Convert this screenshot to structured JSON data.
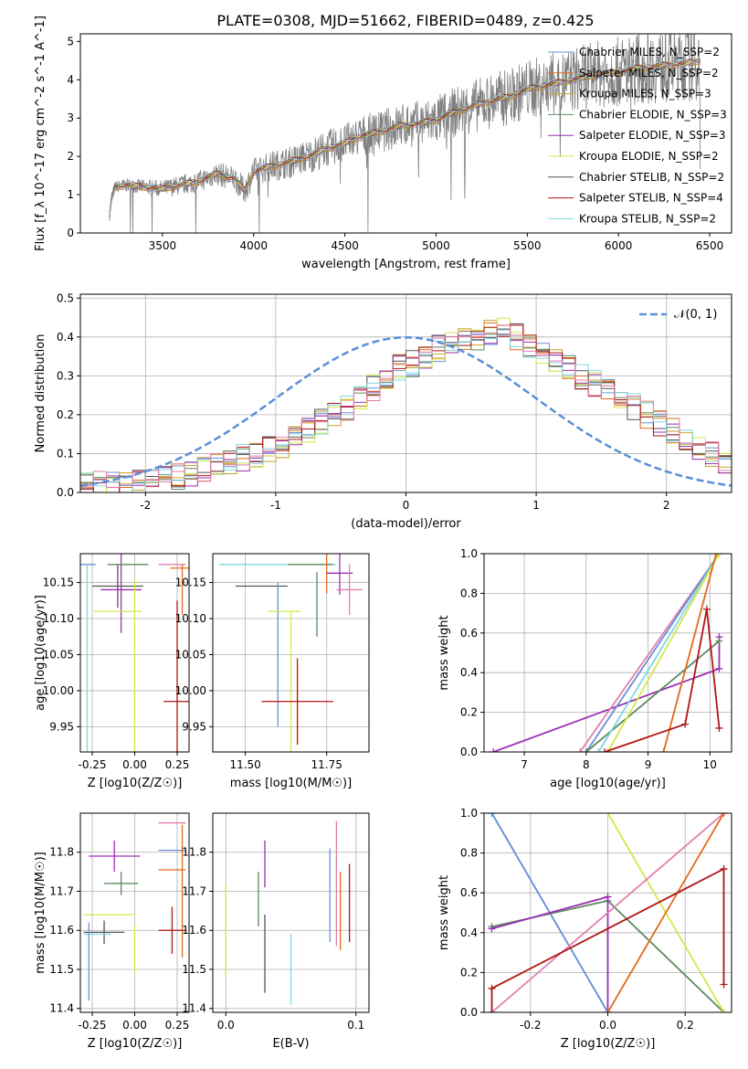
{
  "chart_data": [
    {
      "id": "spectrum",
      "type": "line",
      "title": "PLATE=0308, MJD=51662, FIBERID=0489, z=0.425",
      "xlabel": "wavelength [Angstrom, rest frame]",
      "ylabel": "Flux [f_λ 10^-17 erg cm^-2 s^-1 A^-1]",
      "xlim": [
        3050,
        6620
      ],
      "ylim": [
        0,
        5.2
      ],
      "xticks": [
        3500,
        4000,
        4500,
        5000,
        5500,
        6000,
        6500
      ],
      "yticks": [
        0,
        1,
        2,
        3,
        4,
        5
      ],
      "grid": false,
      "legend_position": "top-right",
      "legend": [
        {
          "label": "Chabrier MILES, N_SSP=2",
          "color": "#6a8fd8"
        },
        {
          "label": "Salpeter MILES, N_SSP=2",
          "color": "#e06b1a"
        },
        {
          "label": "Kroupa MILES, N_SSP=3",
          "color": "#c9a227"
        },
        {
          "label": "Chabrier ELODIE, N_SSP=3",
          "color": "#5e8a5e"
        },
        {
          "label": "Salpeter ELODIE, N_SSP=3",
          "color": "#9c2fb5"
        },
        {
          "label": "Kroupa ELODIE, N_SSP=2",
          "color": "#d4e84a"
        },
        {
          "label": "Chabrier STELIB, N_SSP=2",
          "color": "#555555"
        },
        {
          "label": "Salpeter STELIB, N_SSP=4",
          "color": "#b01515"
        },
        {
          "label": "Kroupa STELIB, N_SSP=2",
          "color": "#80d8e0"
        }
      ],
      "data_color": "#808080",
      "model_points": [
        [
          3200,
          0.02
        ],
        [
          3220,
          0.9
        ],
        [
          3240,
          1.2
        ],
        [
          3300,
          1.25
        ],
        [
          3400,
          1.2
        ],
        [
          3500,
          1.15
        ],
        [
          3600,
          1.25
        ],
        [
          3700,
          1.35
        ],
        [
          3800,
          1.55
        ],
        [
          3900,
          1.4
        ],
        [
          3950,
          1.1
        ],
        [
          4000,
          1.6
        ],
        [
          4100,
          1.75
        ],
        [
          4200,
          1.85
        ],
        [
          4300,
          2.0
        ],
        [
          4400,
          2.2
        ],
        [
          4500,
          2.35
        ],
        [
          4600,
          2.55
        ],
        [
          4700,
          2.65
        ],
        [
          4800,
          2.8
        ],
        [
          4900,
          2.85
        ],
        [
          5000,
          2.95
        ],
        [
          5100,
          3.15
        ],
        [
          5200,
          3.3
        ],
        [
          5300,
          3.45
        ],
        [
          5400,
          3.55
        ],
        [
          5500,
          3.75
        ],
        [
          5600,
          3.85
        ],
        [
          5700,
          3.95
        ],
        [
          5800,
          4.05
        ],
        [
          5900,
          4.15
        ],
        [
          6000,
          4.2
        ],
        [
          6100,
          4.3
        ],
        [
          6200,
          4.35
        ],
        [
          6300,
          4.4
        ],
        [
          6400,
          4.45
        ],
        [
          6450,
          4.5
        ]
      ]
    },
    {
      "id": "residuals",
      "type": "histogram",
      "xlabel": "(data-model)/error",
      "ylabel": "Normed distribution",
      "xlim": [
        -2.5,
        2.5
      ],
      "ylim": [
        0,
        0.51
      ],
      "xticks": [
        -2,
        -1,
        0,
        1,
        2
      ],
      "yticks": [
        0.0,
        0.1,
        0.2,
        0.3,
        0.4,
        0.5
      ],
      "grid": true,
      "legend_position": "top-right",
      "legend_label": "𝒩(0, 1)",
      "gaussian_color": "#5b8fd8",
      "bin_edges_start": -2.5,
      "bin_width": 0.1,
      "colors": [
        "#6a8fd8",
        "#e06b1a",
        "#c9a227",
        "#5e8a5e",
        "#9c2fb5",
        "#d4e84a",
        "#555555",
        "#b01515",
        "#80d8e0",
        "#e07fb0"
      ],
      "reference_values": [
        0.018,
        0.02,
        0.02,
        0.025,
        0.028,
        0.032,
        0.035,
        0.04,
        0.05,
        0.06,
        0.07,
        0.08,
        0.09,
        0.1,
        0.11,
        0.12,
        0.14,
        0.16,
        0.18,
        0.2,
        0.22,
        0.25,
        0.27,
        0.3,
        0.32,
        0.33,
        0.35,
        0.37,
        0.38,
        0.39,
        0.4,
        0.41,
        0.42,
        0.4,
        0.38,
        0.36,
        0.34,
        0.32,
        0.3,
        0.28,
        0.26,
        0.24,
        0.22,
        0.2,
        0.18,
        0.16,
        0.14,
        0.12,
        0.1,
        0.08
      ]
    },
    {
      "id": "age-vs-Z",
      "type": "errorbar",
      "xlabel": "Z [log10(Z/Z☉)]",
      "ylabel": "age  [log10(age/yr)]",
      "xlim": [
        -0.32,
        0.32
      ],
      "ylim": [
        9.915,
        10.19
      ],
      "xticks": [
        -0.25,
        0.0,
        0.25
      ],
      "yticks": [
        9.95,
        10.0,
        10.05,
        10.1,
        10.15
      ],
      "grid": true,
      "points": [
        {
          "x": -0.28,
          "y": 10.175,
          "xerr": 0.05,
          "yerr": 0.0,
          "color": "#6a8fd8"
        },
        {
          "x": -0.28,
          "y": 9.95,
          "xerr": 0.0,
          "yerr": 0.225,
          "color": "#80d8e0"
        },
        {
          "x": -0.1,
          "y": 10.145,
          "xerr": 0.15,
          "yerr": 0.03,
          "color": "#555555"
        },
        {
          "x": -0.08,
          "y": 10.14,
          "xerr": 0.12,
          "yerr": 0.06,
          "color": "#9c2fb5"
        },
        {
          "x": -0.04,
          "y": 10.175,
          "xerr": 0.12,
          "yerr": 0.0,
          "color": "#5e8a5e"
        },
        {
          "x": -0.1,
          "y": 10.11,
          "xerr": 0.14,
          "yerr": 0.0,
          "color": "#d4e84a"
        },
        {
          "x": 0.0,
          "y": 9.945,
          "xerr": 0.0,
          "yerr": 0.21,
          "color": "#d4e84a"
        },
        {
          "x": 0.27,
          "y": 10.17,
          "xerr": 0.06,
          "yerr": 0.0,
          "color": "#e06b1a"
        },
        {
          "x": 0.28,
          "y": 10.14,
          "xerr": 0.0,
          "yerr": 0.035,
          "color": "#e06b1a"
        },
        {
          "x": 0.22,
          "y": 10.175,
          "xerr": 0.08,
          "yerr": 0.0,
          "color": "#e07fb0"
        },
        {
          "x": 0.25,
          "y": 9.985,
          "xerr": 0.08,
          "yerr": 0.14,
          "color": "#b01515"
        }
      ]
    },
    {
      "id": "age-vs-mass",
      "type": "errorbar",
      "xlabel": "mass [log10(M/M☉)]",
      "ylabel": "",
      "xlim": [
        11.4,
        11.88
      ],
      "ylim": [
        9.915,
        10.19
      ],
      "xticks": [
        11.5,
        11.75
      ],
      "yticks": [
        9.95,
        10.0,
        10.05,
        10.1,
        10.15
      ],
      "grid": true,
      "points": [
        {
          "x": 11.6,
          "y": 10.175,
          "xerr": 0.18,
          "yerr": 0.0,
          "color": "#80d8e0"
        },
        {
          "x": 11.55,
          "y": 10.145,
          "xerr": 0.08,
          "yerr": 0.0,
          "color": "#555555"
        },
        {
          "x": 11.6,
          "y": 10.05,
          "xerr": 0.0,
          "yerr": 0.1,
          "color": "#6a8fd8"
        },
        {
          "x": 11.62,
          "y": 10.11,
          "xerr": 0.05,
          "yerr": 0.0,
          "color": "#d4e84a"
        },
        {
          "x": 11.64,
          "y": 9.945,
          "xerr": 0.0,
          "yerr": 0.165,
          "color": "#d4e84a"
        },
        {
          "x": 11.7,
          "y": 10.175,
          "xerr": 0.07,
          "yerr": 0.0,
          "color": "#5e8a5e"
        },
        {
          "x": 11.72,
          "y": 10.12,
          "xerr": 0.0,
          "yerr": 0.045,
          "color": "#5e8a5e"
        },
        {
          "x": 11.75,
          "y": 10.17,
          "xerr": 0.0,
          "yerr": 0.035,
          "color": "#e06b1a"
        },
        {
          "x": 11.79,
          "y": 10.163,
          "xerr": 0.04,
          "yerr": 0.03,
          "color": "#9c2fb5"
        },
        {
          "x": 11.82,
          "y": 10.14,
          "xerr": 0.04,
          "yerr": 0.035,
          "color": "#e07fb0"
        },
        {
          "x": 11.66,
          "y": 9.985,
          "xerr": 0.11,
          "yerr": 0.06,
          "color": "#b01515"
        }
      ]
    },
    {
      "id": "massweight-vs-age",
      "type": "line",
      "xlabel": "age  [log10(age/yr)]",
      "ylabel": "mass weight",
      "xlim": [
        6.35,
        10.35
      ],
      "ylim": [
        0,
        1
      ],
      "xticks": [
        7,
        8,
        9,
        10
      ],
      "yticks": [
        0.0,
        0.2,
        0.4,
        0.6,
        0.8,
        1.0
      ],
      "grid": true,
      "series": [
        {
          "color": "#9c2fb5",
          "points": [
            [
              6.5,
              0
            ],
            [
              10.15,
              0.42
            ],
            [
              10.15,
              0.58
            ]
          ]
        },
        {
          "color": "#e07fb0",
          "points": [
            [
              7.9,
              0
            ],
            [
              10.15,
              1.0
            ]
          ]
        },
        {
          "color": "#6a8fd8",
          "points": [
            [
              8.0,
              0
            ],
            [
              10.15,
              1.0
            ]
          ]
        },
        {
          "color": "#5e8a5e",
          "points": [
            [
              8.0,
              0
            ],
            [
              10.15,
              0.56
            ]
          ]
        },
        {
          "color": "#80d8e0",
          "points": [
            [
              8.2,
              0
            ],
            [
              10.15,
              1.0
            ]
          ]
        },
        {
          "color": "#d4e84a",
          "points": [
            [
              8.35,
              0
            ],
            [
              10.15,
              1.0
            ]
          ]
        },
        {
          "color": "#e06b1a",
          "points": [
            [
              9.25,
              0
            ],
            [
              10.1,
              1.0
            ]
          ]
        },
        {
          "color": "#b01515",
          "points": [
            [
              8.3,
              0
            ],
            [
              9.6,
              0.14
            ],
            [
              9.95,
              0.72
            ],
            [
              10.15,
              0.12
            ]
          ]
        }
      ]
    },
    {
      "id": "mass-vs-Z",
      "type": "errorbar",
      "xlabel": "Z [log10(Z/Z☉)]",
      "ylabel": "mass [log10(M/M☉)]",
      "xlim": [
        -0.32,
        0.32
      ],
      "ylim": [
        11.39,
        11.9
      ],
      "xticks": [
        -0.25,
        0.0,
        0.25
      ],
      "yticks": [
        11.4,
        11.5,
        11.6,
        11.7,
        11.8
      ],
      "grid": true,
      "points": [
        {
          "x": -0.12,
          "y": 11.79,
          "xerr": 0.15,
          "yerr": 0.04,
          "color": "#9c2fb5"
        },
        {
          "x": -0.08,
          "y": 11.72,
          "xerr": 0.1,
          "yerr": 0.03,
          "color": "#5e8a5e"
        },
        {
          "x": -0.15,
          "y": 11.64,
          "xerr": 0.15,
          "yerr": 0.0,
          "color": "#d4e84a"
        },
        {
          "x": 0.0,
          "y": 11.55,
          "xerr": 0.0,
          "yerr": 0.06,
          "color": "#d4e84a"
        },
        {
          "x": -0.18,
          "y": 11.595,
          "xerr": 0.12,
          "yerr": 0.03,
          "color": "#555555"
        },
        {
          "x": -0.22,
          "y": 11.59,
          "xerr": 0.08,
          "yerr": 0.0,
          "color": "#80d8e0"
        },
        {
          "x": -0.27,
          "y": 11.52,
          "xerr": 0.0,
          "yerr": 0.1,
          "color": "#6a8fd8"
        },
        {
          "x": 0.22,
          "y": 11.805,
          "xerr": 0.08,
          "yerr": 0.0,
          "color": "#6a8fd8"
        },
        {
          "x": 0.22,
          "y": 11.875,
          "xerr": 0.08,
          "yerr": 0.0,
          "color": "#e07fb0"
        },
        {
          "x": 0.22,
          "y": 11.755,
          "xerr": 0.08,
          "yerr": 0.0,
          "color": "#e06b1a"
        },
        {
          "x": 0.28,
          "y": 11.7,
          "xerr": 0.0,
          "yerr": 0.17,
          "color": "#e06b1a"
        },
        {
          "x": 0.22,
          "y": 11.6,
          "xerr": 0.08,
          "yerr": 0.06,
          "color": "#b01515"
        }
      ]
    },
    {
      "id": "mass-vs-EBV",
      "type": "errorbar",
      "xlabel": "E(B-V)",
      "ylabel": "",
      "xlim": [
        -0.01,
        0.11
      ],
      "ylim": [
        11.39,
        11.9
      ],
      "xticks": [
        0.0,
        0.1
      ],
      "yticks": [
        11.4,
        11.5,
        11.6,
        11.7,
        11.8
      ],
      "grid": true,
      "points": [
        {
          "x": 0.0,
          "y": 11.6,
          "xerr": 0.0,
          "yerr": 0.12,
          "color": "#d4e84a"
        },
        {
          "x": 0.03,
          "y": 11.77,
          "xerr": 0.0,
          "yerr": 0.06,
          "color": "#9c2fb5"
        },
        {
          "x": 0.025,
          "y": 11.68,
          "xerr": 0.0,
          "yerr": 0.07,
          "color": "#5e8a5e"
        },
        {
          "x": 0.03,
          "y": 11.54,
          "xerr": 0.0,
          "yerr": 0.1,
          "color": "#555555"
        },
        {
          "x": 0.05,
          "y": 11.5,
          "xerr": 0.0,
          "yerr": 0.09,
          "color": "#80d8e0"
        },
        {
          "x": 0.08,
          "y": 11.69,
          "xerr": 0.0,
          "yerr": 0.12,
          "color": "#6a8fd8"
        },
        {
          "x": 0.085,
          "y": 11.72,
          "xerr": 0.0,
          "yerr": 0.16,
          "color": "#e07fb0"
        },
        {
          "x": 0.088,
          "y": 11.65,
          "xerr": 0.0,
          "yerr": 0.1,
          "color": "#e06b1a"
        },
        {
          "x": 0.095,
          "y": 11.67,
          "xerr": 0.0,
          "yerr": 0.1,
          "color": "#b01515"
        }
      ]
    },
    {
      "id": "massweight-vs-Z",
      "type": "line",
      "xlabel": "Z [log10(Z/Z☉)]",
      "ylabel": "mass weight",
      "xlim": [
        -0.32,
        0.32
      ],
      "ylim": [
        0,
        1
      ],
      "xticks": [
        -0.2,
        0.0,
        0.2
      ],
      "yticks": [
        0.0,
        0.2,
        0.4,
        0.6,
        0.8,
        1.0
      ],
      "grid": true,
      "series": [
        {
          "color": "#80d8e0",
          "points": [
            [
              -0.3,
              1.0
            ],
            [
              0.0,
              0.0
            ]
          ]
        },
        {
          "color": "#6a8fd8",
          "points": [
            [
              -0.3,
              1.0
            ],
            [
              0.0,
              0.0
            ]
          ]
        },
        {
          "color": "#5e8a5e",
          "points": [
            [
              -0.3,
              0.43
            ],
            [
              0.0,
              0.56
            ],
            [
              0.3,
              0.0
            ]
          ]
        },
        {
          "color": "#9c2fb5",
          "points": [
            [
              -0.3,
              0.42
            ],
            [
              0.0,
              0.58
            ],
            [
              0.0,
              0.0
            ]
          ]
        },
        {
          "color": "#d4e84a",
          "points": [
            [
              0.0,
              1.0
            ],
            [
              0.3,
              0.0
            ]
          ]
        },
        {
          "color": "#e07fb0",
          "points": [
            [
              -0.3,
              0.0
            ],
            [
              0.3,
              1.0
            ]
          ]
        },
        {
          "color": "#e06b1a",
          "points": [
            [
              0.0,
              0.0
            ],
            [
              0.3,
              1.0
            ]
          ]
        },
        {
          "color": "#b01515",
          "points": [
            [
              -0.3,
              0.0
            ],
            [
              -0.3,
              0.12
            ],
            [
              0.3,
              0.72
            ],
            [
              0.3,
              0.14
            ]
          ]
        }
      ]
    }
  ]
}
